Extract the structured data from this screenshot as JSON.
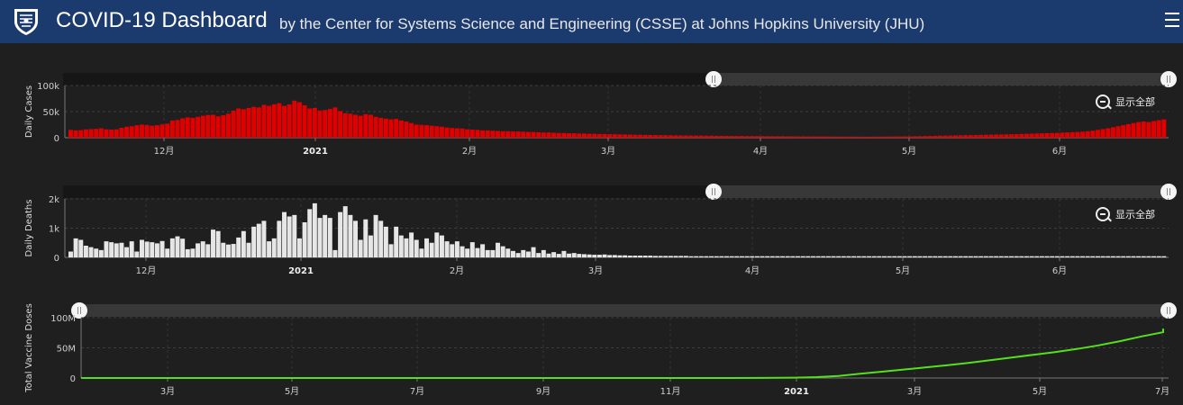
{
  "header": {
    "title": "COVID-19 Dashboard",
    "subtitle": "by the Center for Systems Science and Engineering (CSSE) at Johns Hopkins University (JHU)",
    "menu_icon": "hamburger-menu-icon",
    "logo_icon": "jhu-shield-icon",
    "background_color": "#1b3a6e"
  },
  "zoom_reset_label": "显示全部",
  "chart_data": [
    {
      "type": "bar",
      "ylabel": "Daily Cases",
      "color": "#e00000",
      "ylim": [
        0,
        100000
      ],
      "yticks": [
        {
          "v": 0,
          "label": "0"
        },
        {
          "v": 50000,
          "label": "50k"
        },
        {
          "v": 100000,
          "label": "100k"
        }
      ],
      "xticks": [
        "12月",
        "2021",
        "2月",
        "3月",
        "4月",
        "5月",
        "6月"
      ],
      "values": [
        15000,
        14000,
        14500,
        16000,
        16500,
        17000,
        18000,
        16000,
        15500,
        16000,
        19000,
        21000,
        22000,
        24000,
        25000,
        24500,
        23000,
        24000,
        25500,
        27000,
        33000,
        34000,
        37000,
        39000,
        38000,
        40000,
        42000,
        43500,
        44000,
        41000,
        43000,
        46000,
        52000,
        56000,
        54500,
        57000,
        59000,
        58000,
        63000,
        61000,
        64000,
        66000,
        61000,
        64000,
        71000,
        68000,
        62000,
        56000,
        57000,
        52000,
        53000,
        55000,
        58000,
        51000,
        47000,
        46000,
        44000,
        42000,
        45000,
        44000,
        40000,
        38000,
        36500,
        35000,
        36000,
        33000,
        31000,
        28000,
        25000,
        24500,
        24000,
        23000,
        22000,
        21000,
        19500,
        18500,
        18000,
        17500,
        16000,
        15500,
        15000,
        14000,
        14000,
        13500,
        13000,
        12500,
        12500,
        12000,
        12000,
        11500,
        11000,
        11000,
        10500,
        10000,
        10000,
        9500,
        9000,
        9000,
        8500,
        8500,
        8000,
        8000,
        7500,
        7500,
        7000,
        7000,
        6800,
        6600,
        6400,
        6200,
        6000,
        5800,
        5600,
        5400,
        5200,
        5000,
        5000,
        4800,
        4600,
        4500,
        4400,
        4300,
        4200,
        4100,
        4000,
        3900,
        3800,
        3700,
        3600,
        3500,
        3400,
        3300,
        3300,
        3200,
        3100,
        3000,
        3000,
        2900,
        2900,
        2800,
        2800,
        2700,
        2700,
        2600,
        2600,
        2500,
        2500,
        2400,
        2400,
        2300,
        2300,
        2200,
        2200,
        2100,
        2100,
        2000,
        2000,
        2000,
        2000,
        2100,
        2200,
        2300,
        2400,
        2500,
        2600,
        2700,
        2800,
        3000,
        3200,
        3400,
        3600,
        3800,
        4000,
        4200,
        4400,
        4600,
        4800,
        5000,
        5200,
        5400,
        5600,
        5800,
        6000,
        6200,
        6400,
        6600,
        6900,
        7200,
        7500,
        7800,
        8100,
        8400,
        8700,
        9000,
        9300,
        9700,
        10100,
        10500,
        11000,
        11600,
        12500,
        13500,
        15000,
        16500,
        18000,
        20000,
        22000,
        24000,
        26000,
        28000,
        30000,
        31000,
        30000,
        32000,
        33500,
        35000
      ]
    },
    {
      "type": "bar",
      "ylabel": "Daily Deaths",
      "color": "#e6e6e6",
      "ylim": [
        0,
        2000
      ],
      "yticks": [
        {
          "v": 0,
          "label": "0"
        },
        {
          "v": 1000,
          "label": "1k"
        },
        {
          "v": 2000,
          "label": "2k"
        }
      ],
      "xticks": [
        "12月",
        "2021",
        "2月",
        "3月",
        "4月",
        "5月",
        "6月"
      ],
      "values": [
        200,
        650,
        600,
        400,
        350,
        300,
        250,
        550,
        520,
        480,
        500,
        350,
        550,
        200,
        600,
        540,
        520,
        480,
        560,
        300,
        650,
        720,
        640,
        280,
        300,
        480,
        550,
        450,
        950,
        900,
        500,
        440,
        460,
        680,
        900,
        500,
        1050,
        1150,
        1250,
        550,
        650,
        1250,
        1550,
        1400,
        1450,
        650,
        1200,
        1650,
        1850,
        1350,
        1450,
        1350,
        250,
        1550,
        1750,
        1450,
        1250,
        600,
        1300,
        750,
        1450,
        1250,
        1050,
        450,
        1050,
        750,
        650,
        850,
        600,
        300,
        650,
        500,
        850,
        750,
        550,
        450,
        550,
        380,
        300,
        520,
        320,
        450,
        250,
        250,
        500,
        380,
        300,
        220,
        150,
        250,
        200,
        350,
        150,
        250,
        130,
        180,
        120,
        220,
        130,
        150,
        120,
        110,
        100,
        90,
        90,
        100,
        80,
        80,
        70,
        70,
        60,
        60,
        60,
        60,
        60,
        50,
        50,
        50,
        50,
        50,
        50,
        50,
        40,
        40,
        40,
        40,
        40,
        40,
        40,
        40,
        40,
        40,
        40,
        40,
        40,
        40,
        40,
        40,
        40,
        40,
        40,
        40,
        40,
        40,
        40,
        40,
        40,
        40,
        40,
        40,
        40,
        40,
        40,
        40,
        40,
        40,
        40,
        40,
        40,
        40,
        40,
        40,
        40,
        40,
        40,
        40,
        40,
        40,
        40,
        40,
        40,
        40,
        40,
        40,
        40,
        40,
        40,
        40,
        40,
        40,
        40,
        40,
        40,
        40,
        40,
        40,
        40,
        40,
        40,
        40,
        40,
        40,
        40,
        40,
        40,
        40,
        40,
        40,
        40,
        40,
        40,
        40,
        40,
        40,
        40,
        40,
        40,
        40,
        40,
        40,
        40,
        40,
        40,
        40,
        40,
        40
      ]
    },
    {
      "type": "line",
      "ylabel": "Total Vaccine Doses",
      "color": "#55e01b",
      "ylim": [
        0,
        100000000
      ],
      "yticks": [
        {
          "v": 0,
          "label": "0"
        },
        {
          "v": 50000000,
          "label": "50M"
        },
        {
          "v": 100000000,
          "label": "100M"
        }
      ],
      "xticks": [
        "3月",
        "5月",
        "7月",
        "9月",
        "11月",
        "2021",
        "3月",
        "5月",
        "7月"
      ],
      "points": [
        [
          0,
          0
        ],
        [
          0.1,
          0
        ],
        [
          0.2,
          0
        ],
        [
          0.3,
          0
        ],
        [
          0.4,
          0
        ],
        [
          0.5,
          0
        ],
        [
          0.6,
          0
        ],
        [
          0.63,
          200000
        ],
        [
          0.66,
          600000
        ],
        [
          0.68,
          1500000
        ],
        [
          0.7,
          3500000
        ],
        [
          0.72,
          7000000
        ],
        [
          0.74,
          10500000
        ],
        [
          0.76,
          14000000
        ],
        [
          0.78,
          17500000
        ],
        [
          0.8,
          21000000
        ],
        [
          0.82,
          25000000
        ],
        [
          0.84,
          29500000
        ],
        [
          0.86,
          34000000
        ],
        [
          0.88,
          38500000
        ],
        [
          0.9,
          43000000
        ],
        [
          0.92,
          48000000
        ],
        [
          0.94,
          54000000
        ],
        [
          0.96,
          61000000
        ],
        [
          0.98,
          69000000
        ],
        [
          1.0,
          76000000
        ],
        [
          1.02,
          82000000
        ]
      ]
    }
  ]
}
